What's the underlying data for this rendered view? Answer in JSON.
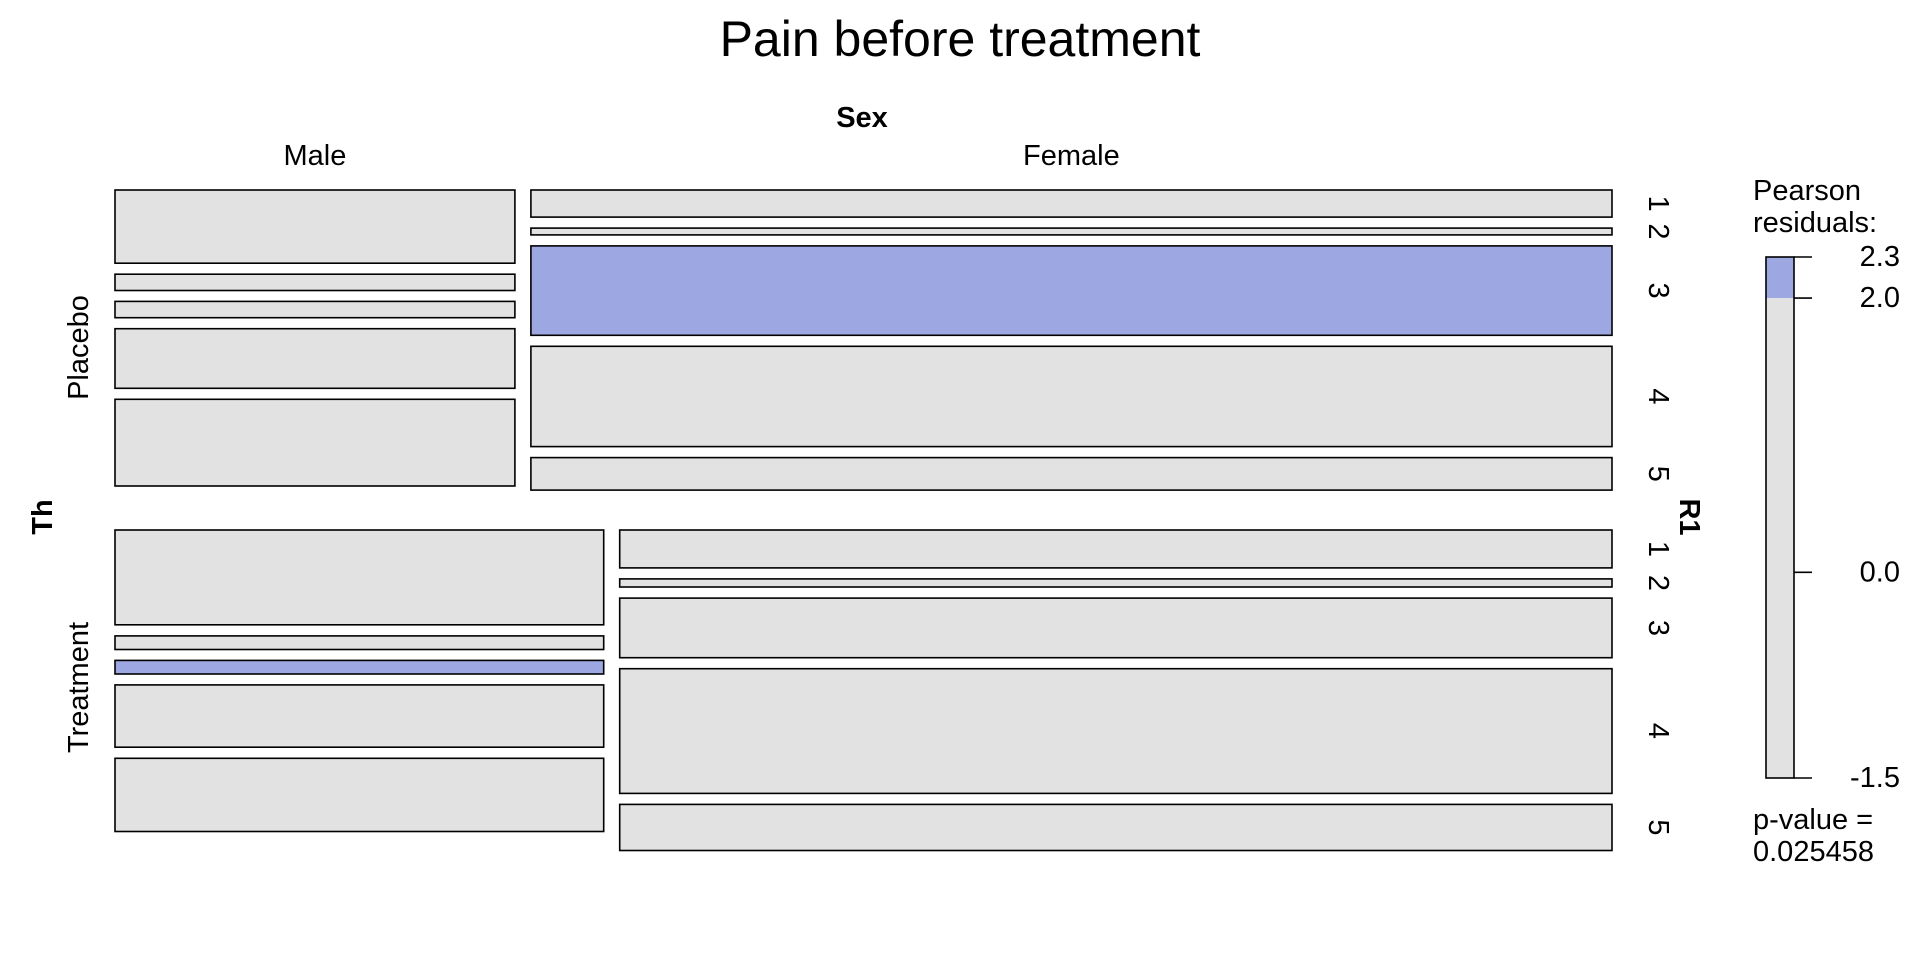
{
  "chart_data": {
    "type": "mosaic",
    "title": "Pain before treatment",
    "variables": {
      "columns": "Sex",
      "rows": "Th",
      "nested": "R1"
    },
    "column_levels": [
      "Male",
      "Female"
    ],
    "row_levels": [
      "Placebo",
      "Treatment"
    ],
    "nested_levels": [
      "1",
      "2",
      "3",
      "4",
      "5"
    ],
    "proportions": {
      "row_share": [
        0.5,
        0.5
      ],
      "column_share_within_row": {
        "Placebo": [
          0.27,
          0.73
        ],
        "Treatment": [
          0.33,
          0.67
        ]
      },
      "nested_share_within_cell": {
        "Placebo": {
          "Male": [
            0.27,
            0.06,
            0.06,
            0.22,
            0.32
          ],
          "Female": [
            0.1,
            0.025,
            0.33,
            0.37,
            0.12
          ]
        },
        "Treatment": {
          "Male": [
            0.35,
            0.05,
            0.05,
            0.23,
            0.27
          ],
          "Female": [
            0.14,
            0.03,
            0.22,
            0.46,
            0.17
          ]
        }
      }
    },
    "highlighted_cells": [
      {
        "row": "Placebo",
        "column": "Female",
        "nested": "3"
      },
      {
        "row": "Treatment",
        "column": "Male",
        "nested": "3"
      }
    ],
    "legend": {
      "title_lines": [
        "Pearson",
        "residuals:"
      ],
      "range": [
        -1.5,
        2.3
      ],
      "ticks": [
        {
          "label": "2.3",
          "value": 2.3
        },
        {
          "label": "2.0",
          "value": 2.0
        },
        {
          "label": "0.0",
          "value": 0.0
        },
        {
          "label": "-1.5",
          "value": -1.5
        }
      ],
      "shade_threshold": 2.0,
      "p_value_lines": [
        "p-value =",
        "0.025458"
      ]
    },
    "colors": {
      "neutral_fill": "#e2e2e2",
      "positive_fill": "#9da8e3",
      "border": "#000000"
    }
  }
}
